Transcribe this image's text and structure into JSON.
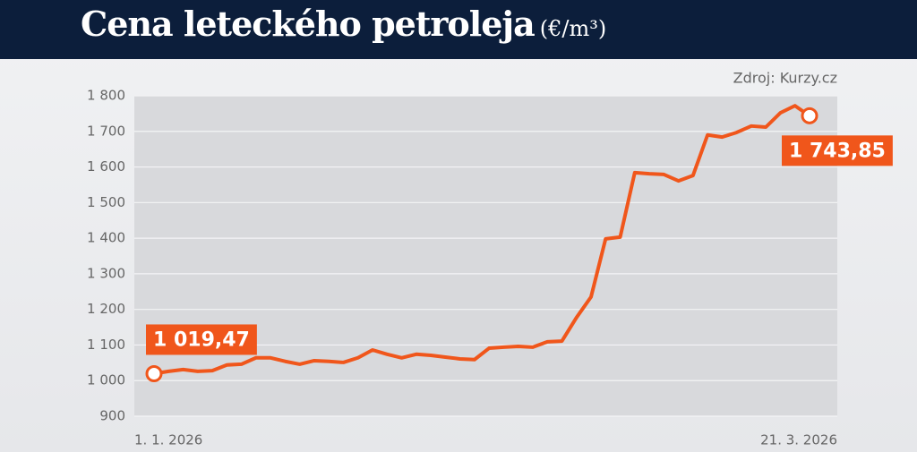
{
  "chart_data": {
    "type": "line",
    "title": "Cena leteckého petroleja",
    "unit": "(€/m³)",
    "source": "Zdroj: Kurzy.cz",
    "color": "#f0561b",
    "categories": [
      "1. 1. 2026",
      null,
      null,
      null,
      null,
      null,
      null,
      null,
      null,
      null,
      null,
      null,
      null,
      null,
      null,
      null,
      null,
      null,
      null,
      null,
      null,
      null,
      null,
      null,
      null,
      null,
      null,
      null,
      null,
      null,
      null,
      null,
      null,
      null,
      null,
      null,
      null,
      null,
      null,
      null,
      null,
      null,
      null,
      null,
      null,
      "21. 3. 2026"
    ],
    "values": [
      1019.47,
      1026,
      1031,
      1026,
      1028,
      1044,
      1046,
      1064,
      1064,
      1054,
      1046,
      1056,
      1054,
      1051,
      1064,
      1086,
      1074,
      1064,
      1074,
      1071,
      1066,
      1061,
      1059,
      1091,
      1094,
      1096,
      1094,
      1109,
      1111,
      1177,
      1235,
      1398,
      1403,
      1584,
      1581,
      1579,
      1561,
      1576,
      1690,
      1684,
      1697,
      1715,
      1712,
      1752,
      1772,
      1743.85
    ],
    "value_labels": [
      "1 019,47",
      null,
      null,
      null,
      null,
      null,
      null,
      null,
      null,
      null,
      null,
      null,
      null,
      null,
      null,
      null,
      null,
      null,
      null,
      null,
      null,
      null,
      null,
      null,
      null,
      null,
      null,
      null,
      null,
      null,
      null,
      null,
      null,
      null,
      null,
      null,
      null,
      null,
      null,
      null,
      null,
      null,
      null,
      null,
      null,
      "1 743,85"
    ],
    "ylim": [
      900,
      1800
    ],
    "yticks": [
      900,
      {
        "value": 1000,
        "label": "1 000"
      },
      {
        "value": 1100,
        "label": "1 100"
      },
      {
        "value": 1200,
        "label": "1 200"
      },
      {
        "value": 1300,
        "label": "1 300"
      },
      {
        "value": 1400,
        "label": "1 400"
      },
      {
        "value": 1500,
        "label": "1 500"
      },
      {
        "value": 1600,
        "label": "1 600"
      },
      {
        "value": 1700,
        "label": "1 700"
      },
      {
        "value": 1800,
        "label": "1 800"
      }
    ],
    "grid": true
  }
}
